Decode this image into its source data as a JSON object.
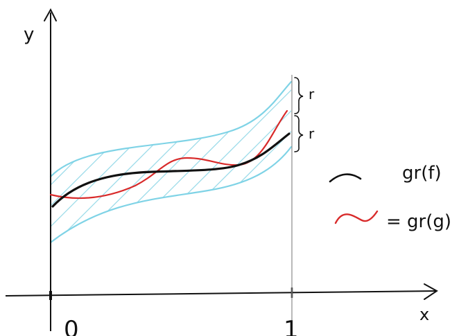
{
  "axes": {
    "x_label": "x",
    "y_label": "y",
    "x_start_tick": "0",
    "x_end_tick": "1"
  },
  "band": {
    "upper_brace_label": "r",
    "lower_brace_label": "r"
  },
  "legend": {
    "f_label": "gr(f)",
    "g_label": "= gr(g)"
  },
  "colors": {
    "f_curve": "#111111",
    "g_curve": "#d82a2a",
    "band": "#7fd3e6",
    "hatch": "#9adbe9",
    "axes": "#111111",
    "guide": "#8a8a8a"
  }
}
